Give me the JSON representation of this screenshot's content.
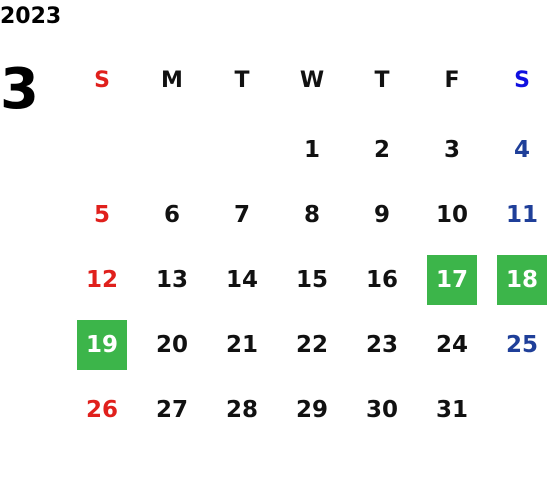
{
  "year": "2023",
  "month": "3",
  "weekdays": [
    "S",
    "M",
    "T",
    "W",
    "T",
    "F",
    "S"
  ],
  "weeks": [
    [
      null,
      null,
      null,
      {
        "day": 1
      },
      {
        "day": 2
      },
      {
        "day": 3
      },
      {
        "day": 4
      }
    ],
    [
      {
        "day": 5
      },
      {
        "day": 6
      },
      {
        "day": 7
      },
      {
        "day": 8
      },
      {
        "day": 9
      },
      {
        "day": 10
      },
      {
        "day": 11
      }
    ],
    [
      {
        "day": 12
      },
      {
        "day": 13
      },
      {
        "day": 14
      },
      {
        "day": 15
      },
      {
        "day": 16
      },
      {
        "day": 17,
        "highlighted": true
      },
      {
        "day": 18,
        "highlighted": true
      }
    ],
    [
      {
        "day": 19,
        "highlighted": true
      },
      {
        "day": 20
      },
      {
        "day": 21
      },
      {
        "day": 22
      },
      {
        "day": 23
      },
      {
        "day": 24
      },
      {
        "day": 25
      }
    ],
    [
      {
        "day": 26
      },
      {
        "day": 27
      },
      {
        "day": 28
      },
      {
        "day": 29
      },
      {
        "day": 30
      },
      {
        "day": 31
      },
      null
    ]
  ]
}
